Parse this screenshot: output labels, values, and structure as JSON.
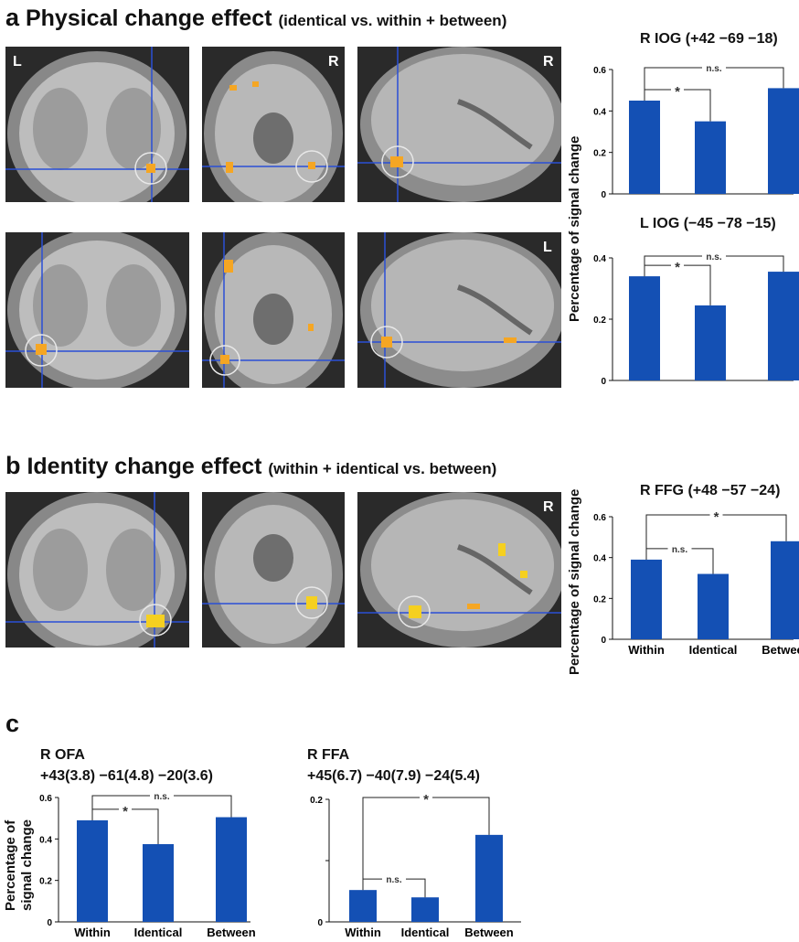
{
  "panel_a": {
    "letter": "a",
    "title": "Physical change effect",
    "subtitle": "(identical vs. within + between)",
    "row1_labels": [
      "L",
      "R",
      "R"
    ],
    "row2_labels": [
      "L"
    ]
  },
  "panel_b": {
    "letter": "b",
    "title": "Identity change effect",
    "subtitle": "(within + identical vs. between)",
    "labels": [
      "R"
    ]
  },
  "panel_c": {
    "letter": "c"
  },
  "ylabel": "Percentage of signal change",
  "ylabel_c_line1": "Percentage of",
  "ylabel_c_line2": "signal change",
  "colors": {
    "bar": "#1450b4",
    "crosshair": "#2a4fd6",
    "blob": "#f5a623",
    "circle": "#e8e8e8"
  },
  "chart_data": [
    {
      "type": "bar",
      "title": "R IOG (+42 −69 −18)",
      "categories": [
        "Within",
        "Identical",
        "Between"
      ],
      "values": [
        0.45,
        0.35,
        0.51
      ],
      "ylim": [
        0,
        0.6
      ],
      "yticks": [
        "0",
        "0.2",
        "0.4",
        "0.6"
      ],
      "show_xticklabels": false,
      "annotations": [
        {
          "from": 0,
          "to": 1,
          "label": "*"
        },
        {
          "from": 0,
          "to": 2,
          "label": "n.s."
        }
      ]
    },
    {
      "type": "bar",
      "title": "L IOG (−45 −78 −15)",
      "categories": [
        "Within",
        "Identical",
        "Between"
      ],
      "values": [
        0.34,
        0.245,
        0.355
      ],
      "ylim": [
        0,
        0.4
      ],
      "yticks": [
        "0",
        "0.2",
        "0.4"
      ],
      "show_xticklabels": false,
      "annotations": [
        {
          "from": 0,
          "to": 1,
          "label": "*"
        },
        {
          "from": 0,
          "to": 2,
          "label": "n.s."
        }
      ]
    },
    {
      "type": "bar",
      "title": "R FFG (+48 −57 −24)",
      "categories": [
        "Within",
        "Identical",
        "Between"
      ],
      "values": [
        0.39,
        0.32,
        0.48
      ],
      "ylim": [
        0,
        0.6
      ],
      "yticks": [
        "0",
        "0.2",
        "0.4",
        "0.6"
      ],
      "show_xticklabels": true,
      "annotations": [
        {
          "from": 0,
          "to": 1,
          "label": "n.s."
        },
        {
          "from": 0,
          "to": 2,
          "label": "*"
        }
      ]
    },
    {
      "type": "bar",
      "title": "R OFA",
      "subtitle": "+43(3.8) −61(4.8) −20(3.6)",
      "categories": [
        "Within",
        "Identical",
        "Between"
      ],
      "values": [
        0.49,
        0.375,
        0.505
      ],
      "ylim": [
        0,
        0.6
      ],
      "yticks": [
        "0",
        "0.2",
        "0.4",
        "0.6"
      ],
      "show_xticklabels": true,
      "annotations": [
        {
          "from": 0,
          "to": 1,
          "label": "*"
        },
        {
          "from": 0,
          "to": 2,
          "label": "n.s."
        }
      ]
    },
    {
      "type": "bar",
      "title": "R FFA",
      "subtitle": "+45(6.7) −40(7.9) −24(5.4)",
      "categories": [
        "Within",
        "Identical",
        "Between"
      ],
      "values": [
        0.052,
        0.04,
        0.142
      ],
      "ylim": [
        0,
        0.2
      ],
      "yticks": [
        "0",
        "",
        "0.2"
      ],
      "show_xticklabels": true,
      "annotations": [
        {
          "from": 0,
          "to": 1,
          "label": "n.s."
        },
        {
          "from": 0,
          "to": 2,
          "label": "*"
        }
      ]
    }
  ]
}
